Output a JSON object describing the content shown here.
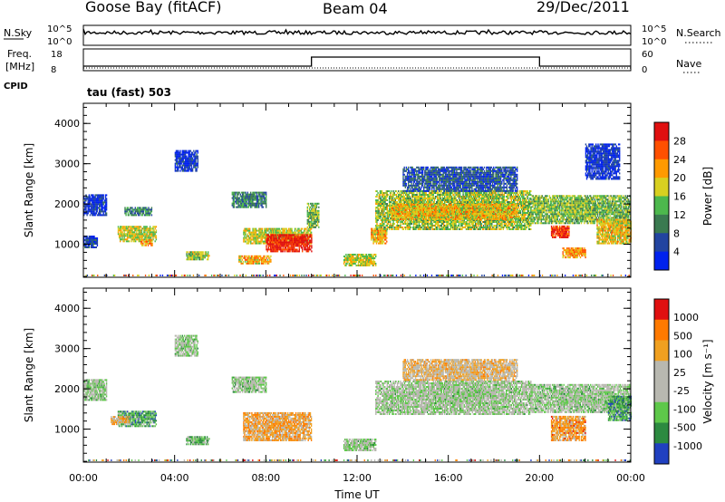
{
  "header": {
    "station": "Goose Bay (fitACF)",
    "beam": "Beam 04",
    "date": "29/Dec/2011"
  },
  "status_panel": {
    "nsky_label": "N.Sky",
    "nsky_ticks": [
      "10^5",
      "10^0"
    ],
    "nsearch_label": "N.Search",
    "nsearch_ticks": [
      "10^5",
      "10^0"
    ],
    "freq_label": "Freq.",
    "freq_unit": "[MHz]",
    "freq_ticks": [
      "18",
      "8"
    ],
    "nave_label": "Nave",
    "nave_ticks": [
      "60",
      "0"
    ],
    "cpid_label": "CPID",
    "cpid_value": "tau (fast) 503"
  },
  "chart_data": [
    {
      "type": "heatmap",
      "name": "power",
      "ylabel": "Slant Range [km]",
      "xlabel": "",
      "ylim": [
        180,
        4500
      ],
      "yticks": [
        "1000",
        "2000",
        "3000",
        "4000"
      ],
      "colorbar_label": "Power [dB]",
      "colorbar_ticks": [
        "28",
        "24",
        "20",
        "16",
        "12",
        "8",
        "4"
      ],
      "colors": [
        "#0022ee",
        "#2244a0",
        "#3a7a50",
        "#4db84d",
        "#d8d020",
        "#ff9a00",
        "#ff5000",
        "#e01010"
      ],
      "echo_regions": [
        {
          "t0": 0.0,
          "t1": 1.0,
          "r0": 1700,
          "r1": 2200,
          "level": 0.1
        },
        {
          "t0": 0.0,
          "t1": 0.6,
          "r0": 900,
          "r1": 1200,
          "level": 0.15
        },
        {
          "t0": 1.5,
          "t1": 3.2,
          "r0": 1050,
          "r1": 1450,
          "level": 0.55
        },
        {
          "t0": 2.5,
          "t1": 3.0,
          "r0": 950,
          "r1": 1100,
          "level": 0.7
        },
        {
          "t0": 1.8,
          "t1": 3.0,
          "r0": 1700,
          "r1": 1900,
          "level": 0.3
        },
        {
          "t0": 4.0,
          "t1": 5.0,
          "r0": 2800,
          "r1": 3300,
          "level": 0.1
        },
        {
          "t0": 4.5,
          "t1": 5.5,
          "r0": 600,
          "r1": 800,
          "level": 0.5
        },
        {
          "t0": 6.5,
          "t1": 8.0,
          "r0": 1900,
          "r1": 2300,
          "level": 0.3
        },
        {
          "t0": 6.8,
          "t1": 8.2,
          "r0": 500,
          "r1": 700,
          "level": 0.65
        },
        {
          "t0": 7.0,
          "t1": 10.0,
          "r0": 1000,
          "r1": 1400,
          "level": 0.55
        },
        {
          "t0": 8.0,
          "t1": 10.0,
          "r0": 800,
          "r1": 1250,
          "level": 0.93
        },
        {
          "t0": 9.8,
          "t1": 10.3,
          "r0": 1400,
          "r1": 2000,
          "level": 0.45
        },
        {
          "t0": 11.4,
          "t1": 12.8,
          "r0": 450,
          "r1": 750,
          "level": 0.55
        },
        {
          "t0": 12.6,
          "t1": 13.3,
          "r0": 1000,
          "r1": 1400,
          "level": 0.65
        },
        {
          "t0": 12.8,
          "t1": 19.6,
          "r0": 1350,
          "r1": 2300,
          "level": 0.5
        },
        {
          "t0": 13.5,
          "t1": 19.0,
          "r0": 1600,
          "r1": 2000,
          "level": 0.62
        },
        {
          "t0": 14.0,
          "t1": 19.0,
          "r0": 2300,
          "r1": 2900,
          "level": 0.2
        },
        {
          "t0": 19.6,
          "t1": 24.0,
          "r0": 1500,
          "r1": 2200,
          "level": 0.45
        },
        {
          "t0": 20.5,
          "t1": 21.3,
          "r0": 1150,
          "r1": 1450,
          "level": 0.9
        },
        {
          "t0": 21.0,
          "t1": 22.0,
          "r0": 650,
          "r1": 900,
          "level": 0.7
        },
        {
          "t0": 22.5,
          "t1": 24.0,
          "r0": 1000,
          "r1": 1600,
          "level": 0.6
        },
        {
          "t0": 22.0,
          "t1": 23.5,
          "r0": 2600,
          "r1": 3500,
          "level": 0.1
        }
      ]
    },
    {
      "type": "heatmap",
      "name": "velocity",
      "ylabel": "Slant Range [km]",
      "xlabel": "Time UT",
      "ylim": [
        180,
        4500
      ],
      "yticks": [
        "1000",
        "2000",
        "3000",
        "4000"
      ],
      "xlim": [
        0,
        24
      ],
      "xticks": [
        "00:00",
        "04:00",
        "08:00",
        "12:00",
        "16:00",
        "20:00",
        "00:00"
      ],
      "colorbar_label": "Velocity [m s⁻¹]",
      "colorbar_ticks": [
        "1000",
        "500",
        "100",
        "25",
        "-25",
        "-100",
        "-500",
        "-1000"
      ],
      "colors": [
        "#2040c0",
        "#2c8a40",
        "#5ec84a",
        "#b8b8b0",
        "#b8b8b0",
        "#f0a020",
        "#ff7a00",
        "#e01010"
      ],
      "echo_regions": [
        {
          "t0": 0.0,
          "t1": 1.0,
          "r0": 1700,
          "r1": 2200,
          "level": 0.4
        },
        {
          "t0": 1.5,
          "t1": 3.2,
          "r0": 1050,
          "r1": 1450,
          "level": 0.25
        },
        {
          "t0": 1.2,
          "t1": 2.0,
          "r0": 1100,
          "r1": 1300,
          "level": 0.65
        },
        {
          "t0": 4.5,
          "t1": 5.5,
          "r0": 600,
          "r1": 800,
          "level": 0.3
        },
        {
          "t0": 4.0,
          "t1": 5.0,
          "r0": 2800,
          "r1": 3300,
          "level": 0.4
        },
        {
          "t0": 6.5,
          "t1": 8.0,
          "r0": 1900,
          "r1": 2300,
          "level": 0.4
        },
        {
          "t0": 7.0,
          "t1": 10.0,
          "r0": 700,
          "r1": 1400,
          "level": 0.68
        },
        {
          "t0": 11.4,
          "t1": 12.8,
          "r0": 450,
          "r1": 750,
          "level": 0.4
        },
        {
          "t0": 12.8,
          "t1": 19.6,
          "r0": 1350,
          "r1": 2200,
          "level": 0.42
        },
        {
          "t0": 14.0,
          "t1": 19.0,
          "r0": 2200,
          "r1": 2700,
          "level": 0.62
        },
        {
          "t0": 19.6,
          "t1": 24.0,
          "r0": 1400,
          "r1": 2100,
          "level": 0.4
        },
        {
          "t0": 20.5,
          "t1": 22.0,
          "r0": 700,
          "r1": 1300,
          "level": 0.72
        },
        {
          "t0": 23.0,
          "t1": 24.0,
          "r0": 1200,
          "r1": 1800,
          "level": 0.25
        }
      ]
    }
  ]
}
